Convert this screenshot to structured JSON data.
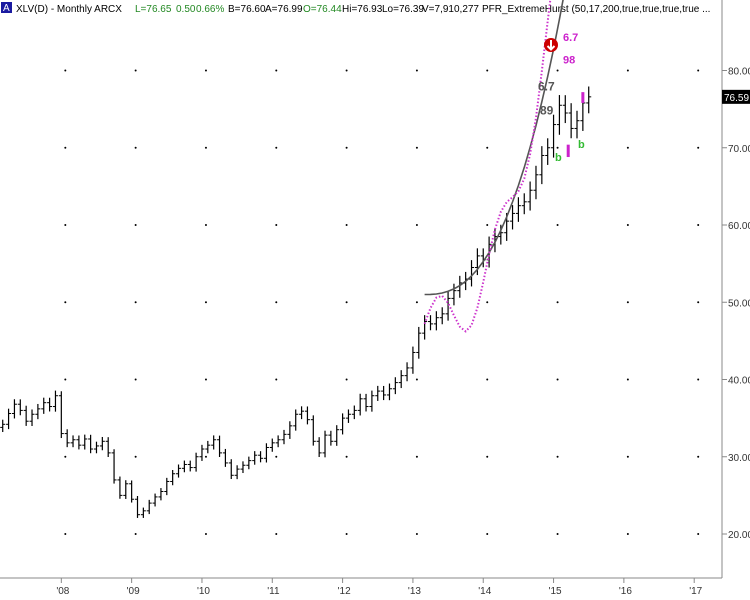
{
  "header": {
    "icon": "chart-window-icon",
    "symbol": "XLV(D) - Monthly  ARCX",
    "last_label": "L=76.65",
    "change": "0.50",
    "change_pct": "0.66%",
    "bid": "B=76.60",
    "ask": "A=76.99",
    "open": "O=76.44",
    "high": "Hi=76.93",
    "low": "Lo=76.39",
    "volume": "V=7,910,277",
    "study": "PFR_ExtremeHurst (50,17,200,true,true,true,true ..."
  },
  "colors": {
    "background": "#ffffff",
    "bars": "#000000",
    "hurst_curve": "#cc33cc",
    "trend_curve": "#555555",
    "buy_marker": "#33bb33",
    "sell_marker": "#cc22cc",
    "alert": "#cc0000",
    "price_box": "#000000",
    "positive_change": "#228822"
  },
  "chart_data": {
    "type": "bar",
    "title": "XLV(D) - Monthly  ARCX",
    "ylim": [
      15,
      87
    ],
    "y_ticks": [
      "80.00",
      "70.00",
      "60.00",
      "50.00",
      "40.00",
      "30.00",
      "20.00"
    ],
    "x_ticks": [
      "'08",
      "'09",
      "'10",
      "'11",
      "'12",
      "'13",
      "'14",
      "'15",
      "'16",
      "'17"
    ],
    "x_range": [
      "2007-01",
      "2017-04"
    ],
    "last_price": "76.59",
    "ohlc_close_monthly": [
      34.5,
      33.8,
      34.2,
      35.6,
      36.8,
      36.0,
      34.6,
      35.5,
      36.2,
      37.0,
      36.5,
      37.9,
      33.0,
      31.8,
      32.2,
      31.5,
      32.3,
      31.0,
      31.4,
      32.0,
      30.5,
      27.0,
      25.0,
      26.5,
      24.5,
      22.5,
      23.0,
      24.0,
      24.8,
      25.5,
      26.8,
      27.8,
      28.5,
      29.0,
      28.6,
      30.0,
      31.0,
      31.5,
      32.2,
      30.5,
      29.2,
      27.6,
      28.4,
      28.9,
      29.5,
      30.2,
      29.8,
      31.2,
      31.8,
      32.2,
      32.9,
      34.0,
      35.5,
      35.9,
      34.8,
      32.0,
      30.5,
      32.8,
      32.0,
      33.5,
      35.0,
      35.5,
      36.0,
      37.5,
      36.5,
      37.9,
      38.5,
      38.0,
      38.8,
      39.6,
      40.5,
      41.5,
      43.5,
      46.0,
      47.5,
      47.2,
      48.0,
      48.5,
      50.5,
      51.5,
      52.5,
      53.0,
      54.5,
      56.0,
      55.5,
      57.5,
      58.5,
      59.0,
      60.5,
      61.5,
      62.5,
      63.0,
      64.5,
      66.5,
      69.0,
      70.0,
      73.0,
      75.5,
      74.5,
      72.5,
      73.5,
      75.8,
      76.59
    ],
    "annotations": [
      {
        "text": "6.7",
        "price": 83.8,
        "color": "purple"
      },
      {
        "text": "98",
        "price": 80.9,
        "color": "purple"
      },
      {
        "text": "6.7",
        "price": 77.4,
        "color": "gray"
      },
      {
        "text": "89",
        "price": 74.3,
        "color": "gray"
      },
      {
        "text": "b",
        "price": 70.0,
        "color": "green"
      },
      {
        "text": "b",
        "price": 68.3,
        "color": "green"
      }
    ],
    "grid": "dotted"
  }
}
